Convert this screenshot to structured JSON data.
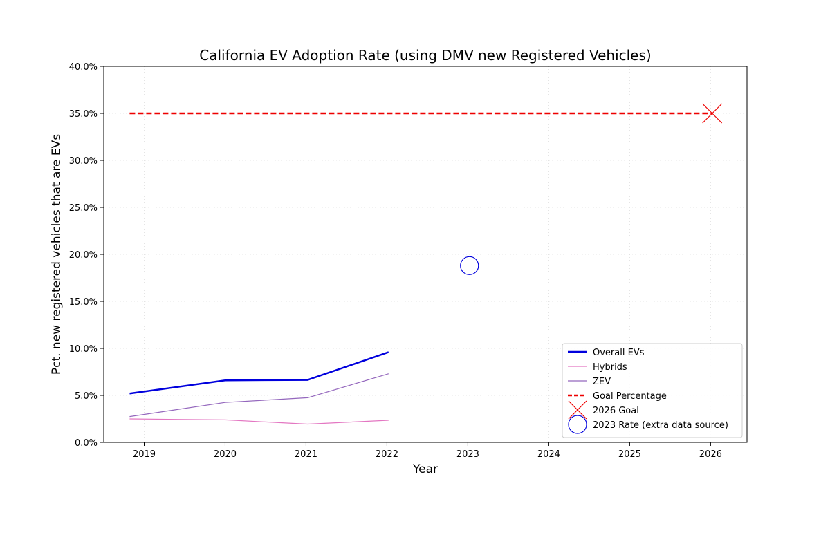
{
  "chart_data": {
    "type": "line",
    "title": "California EV Adoption Rate (using DMV new Registered Vehicles)",
    "xlabel": "Year",
    "ylabel": "Pct. new registered vehicles that are EVs",
    "xlim": [
      2018.5,
      2026.45
    ],
    "ylim": [
      0,
      40
    ],
    "xticks": [
      {
        "value": 2019,
        "label": "2019"
      },
      {
        "value": 2020,
        "label": "2020"
      },
      {
        "value": 2021,
        "label": "2021"
      },
      {
        "value": 2022,
        "label": "2022"
      },
      {
        "value": 2023,
        "label": "2023"
      },
      {
        "value": 2024,
        "label": "2024"
      },
      {
        "value": 2025,
        "label": "2025"
      },
      {
        "value": 2026,
        "label": "2026"
      }
    ],
    "yticks": [
      {
        "value": 0,
        "label": "0.0%"
      },
      {
        "value": 5,
        "label": "5.0%"
      },
      {
        "value": 10,
        "label": "10.0%"
      },
      {
        "value": 15,
        "label": "15.0%"
      },
      {
        "value": 20,
        "label": "20.0%"
      },
      {
        "value": 25,
        "label": "25.0%"
      },
      {
        "value": 30,
        "label": "30.0%"
      },
      {
        "value": 35,
        "label": "35.0%"
      },
      {
        "value": 40,
        "label": "40.0%"
      }
    ],
    "grid": true,
    "legend_position": "lower-right",
    "series": [
      {
        "name": "Overall EVs",
        "kind": "line",
        "color": "#0000dd",
        "width": 2.5,
        "dash": "",
        "points": [
          [
            2018.82,
            5.2
          ],
          [
            2020.0,
            6.6
          ],
          [
            2021.02,
            6.65
          ],
          [
            2022.02,
            9.6
          ]
        ]
      },
      {
        "name": "Hybrids",
        "kind": "line",
        "color": "#e377c2",
        "width": 1.2,
        "dash": "",
        "points": [
          [
            2018.82,
            2.5
          ],
          [
            2020.0,
            2.4
          ],
          [
            2021.02,
            1.95
          ],
          [
            2022.02,
            2.35
          ]
        ]
      },
      {
        "name": "ZEV",
        "kind": "line",
        "color": "#9467bd",
        "width": 1.2,
        "dash": "",
        "points": [
          [
            2018.82,
            2.75
          ],
          [
            2020.0,
            4.25
          ],
          [
            2021.02,
            4.75
          ],
          [
            2022.02,
            7.3
          ]
        ]
      },
      {
        "name": "Goal Percentage",
        "kind": "line",
        "color": "#ee0000",
        "width": 2.5,
        "dash": "8,4",
        "points": [
          [
            2018.82,
            35
          ],
          [
            2026.02,
            35
          ]
        ]
      },
      {
        "name": "2026 Goal",
        "kind": "marker-x",
        "color": "#ee0000",
        "points": [
          [
            2026.02,
            35
          ]
        ]
      },
      {
        "name": "2023 Rate (extra data source)",
        "kind": "marker-circle",
        "color": "#0000dd",
        "points": [
          [
            2023.02,
            18.8
          ]
        ]
      }
    ]
  }
}
